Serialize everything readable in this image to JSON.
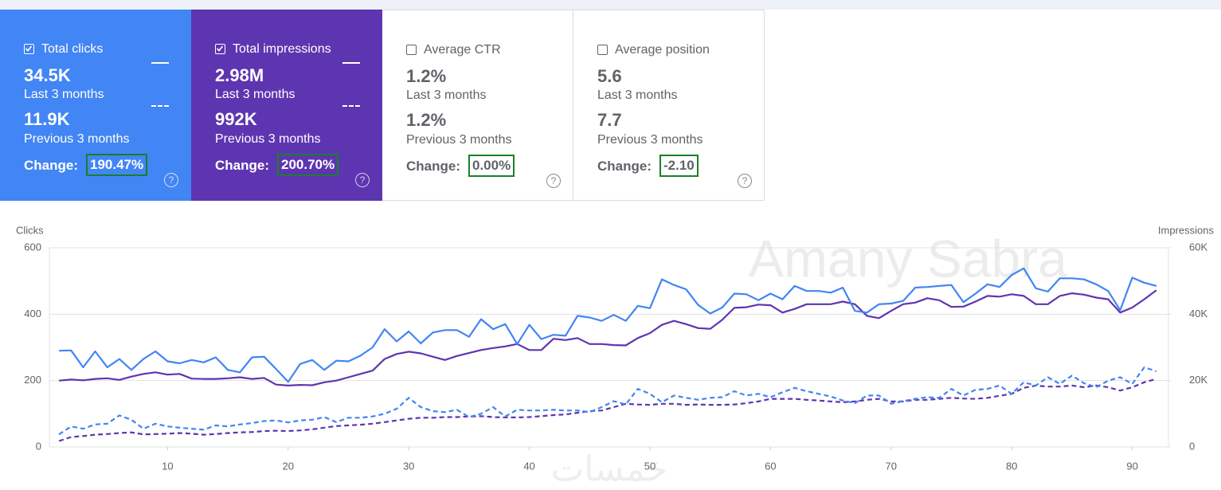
{
  "cards": [
    {
      "label": "Total clicks",
      "checked": true,
      "style": "dark",
      "color": "#4285f4",
      "current": "34.5K",
      "current_period": "Last 3 months",
      "previous": "11.9K",
      "previous_period": "Previous 3 months",
      "change_label": "Change:",
      "change": "190.47%"
    },
    {
      "label": "Total impressions",
      "checked": true,
      "style": "dark",
      "color": "#5e35b1",
      "current": "2.98M",
      "current_period": "Last 3 months",
      "previous": "992K",
      "previous_period": "Previous 3 months",
      "change_label": "Change:",
      "change": "200.70%"
    },
    {
      "label": "Average CTR",
      "checked": false,
      "style": "light",
      "color": "#ffffff",
      "current": "1.2%",
      "current_period": "Last 3 months",
      "previous": "1.2%",
      "previous_period": "Previous 3 months",
      "change_label": "Change:",
      "change": "0.00%"
    },
    {
      "label": "Average position",
      "checked": false,
      "style": "light",
      "color": "#ffffff",
      "current": "5.6",
      "current_period": "Last 3 months",
      "previous": "7.7",
      "previous_period": "Previous 3 months",
      "change_label": "Change:",
      "change": "-2.10"
    }
  ],
  "watermark": "Amany Sabra",
  "watermark_footer": "خمسات",
  "chart_data": {
    "type": "line",
    "ylabel": "Clicks",
    "y2label": "Impressions",
    "x": [
      1,
      2,
      3,
      4,
      5,
      6,
      7,
      8,
      9,
      10,
      11,
      12,
      13,
      14,
      15,
      16,
      17,
      18,
      19,
      20,
      21,
      22,
      23,
      24,
      25,
      26,
      27,
      28,
      29,
      30,
      31,
      32,
      33,
      34,
      35,
      36,
      37,
      38,
      39,
      40,
      41,
      42,
      43,
      44,
      45,
      46,
      47,
      48,
      49,
      50,
      51,
      52,
      53,
      54,
      55,
      56,
      57,
      58,
      59,
      60,
      61,
      62,
      63,
      64,
      65,
      66,
      67,
      68,
      69,
      70,
      71,
      72,
      73,
      74,
      75,
      76,
      77,
      78,
      79,
      80,
      81,
      82,
      83,
      84,
      85,
      86,
      87,
      88,
      89,
      90,
      91,
      92
    ],
    "xlim": [
      0.2,
      93
    ],
    "xticks": [
      10,
      20,
      30,
      40,
      50,
      60,
      70,
      80,
      90
    ],
    "ylim": [
      0,
      600
    ],
    "yticks": [
      0,
      200,
      400,
      600
    ],
    "y2lim": [
      0,
      60000
    ],
    "y2ticks": [
      0,
      {
        "value": 20000,
        "label": "20K"
      },
      {
        "value": 40000,
        "label": "40K"
      },
      {
        "value": 60000,
        "label": "60K"
      }
    ],
    "grid": true,
    "series": [
      {
        "name": "Clicks",
        "color": "#4285f4",
        "dashed": false,
        "values": [
          290,
          291,
          240,
          288,
          240,
          265,
          232,
          265,
          288,
          258,
          252,
          262,
          255,
          270,
          232,
          225,
          270,
          272,
          235,
          196,
          250,
          262,
          232,
          260,
          258,
          275,
          300,
          355,
          318,
          348,
          312,
          345,
          352,
          352,
          332,
          385,
          355,
          370,
          310,
          368,
          325,
          338,
          335,
          395,
          390,
          380,
          398,
          380,
          425,
          418,
          505,
          488,
          475,
          428,
          402,
          420,
          462,
          460,
          442,
          462,
          445,
          485,
          470,
          470,
          465,
          480,
          410,
          405,
          430,
          432,
          440,
          480,
          482,
          485,
          488,
          436,
          462,
          490,
          482,
          518,
          538,
          478,
          468,
          508,
          508,
          505,
          490,
          470,
          412,
          510,
          495,
          485
        ]
      },
      {
        "name": "Impressions",
        "color": "#5e35b1",
        "dashed": false,
        "axis": "y2",
        "values": [
          20000,
          20300,
          20100,
          20500,
          20700,
          20200,
          21200,
          22000,
          22500,
          21800,
          22000,
          20600,
          20500,
          20500,
          20700,
          21000,
          20500,
          20800,
          18800,
          18500,
          18700,
          18600,
          19500,
          20000,
          21000,
          22000,
          23000,
          26500,
          28000,
          28700,
          28200,
          27200,
          26200,
          27400,
          28300,
          29200,
          29800,
          30300,
          31000,
          29200,
          29200,
          32600,
          32200,
          32800,
          31000,
          31000,
          30700,
          30600,
          32800,
          34300,
          36800,
          38000,
          37000,
          35800,
          35600,
          38300,
          41900,
          42100,
          42900,
          42700,
          40500,
          41600,
          43000,
          43000,
          43000,
          43800,
          43000,
          39500,
          38800,
          41000,
          43000,
          43500,
          44800,
          44200,
          42200,
          42300,
          43800,
          45500,
          45300,
          46000,
          45500,
          43000,
          43000,
          45500,
          46300,
          45900,
          45000,
          44500,
          40500,
          42000,
          44500,
          47200
        ]
      },
      {
        "name": "Clicks",
        "color": "#4285f4",
        "dashed": true,
        "values": [
          38,
          62,
          55,
          68,
          70,
          95,
          82,
          55,
          70,
          62,
          58,
          55,
          52,
          65,
          62,
          68,
          72,
          78,
          80,
          74,
          80,
          82,
          90,
          75,
          88,
          88,
          92,
          100,
          115,
          148,
          120,
          108,
          105,
          112,
          90,
          100,
          120,
          92,
          112,
          110,
          110,
          112,
          110,
          110,
          105,
          120,
          138,
          128,
          175,
          160,
          135,
          155,
          148,
          142,
          148,
          150,
          168,
          155,
          160,
          150,
          165,
          178,
          168,
          160,
          152,
          140,
          132,
          155,
          155,
          130,
          138,
          145,
          150,
          148,
          175,
          155,
          172,
          175,
          185,
          160,
          195,
          185,
          210,
          190,
          215,
          192,
          180,
          200,
          210,
          190,
          240,
          228
        ]
      },
      {
        "name": "Impressions",
        "color": "#5e35b1",
        "dashed": true,
        "axis": "y2",
        "values": [
          1800,
          3000,
          3300,
          3700,
          3900,
          4200,
          4400,
          3800,
          3900,
          4000,
          4200,
          4000,
          3700,
          3900,
          4200,
          4400,
          4500,
          4800,
          4900,
          4800,
          5000,
          5300,
          5800,
          6300,
          6500,
          6700,
          7000,
          7500,
          8000,
          8500,
          8800,
          8800,
          9000,
          9000,
          9200,
          9300,
          9000,
          8900,
          8900,
          9000,
          9300,
          9600,
          9800,
          10300,
          10800,
          11000,
          12000,
          13000,
          12800,
          12700,
          13000,
          13000,
          12700,
          12800,
          12700,
          12700,
          12800,
          13200,
          13700,
          14500,
          14500,
          14500,
          14200,
          14000,
          13700,
          13500,
          13700,
          14200,
          14500,
          13700,
          13700,
          14200,
          14200,
          14500,
          14800,
          14600,
          14500,
          14800,
          15400,
          16000,
          17800,
          18500,
          18200,
          18200,
          18500,
          18000,
          18500,
          18000,
          17000,
          18000,
          19500,
          20500
        ]
      }
    ]
  }
}
